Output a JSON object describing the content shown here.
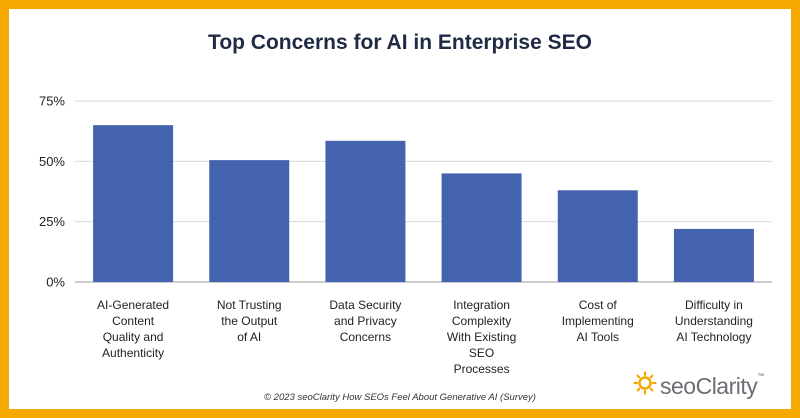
{
  "chart_data": {
    "type": "bar",
    "title": "Top Concerns for AI in Enterprise SEO",
    "categories": [
      "AI-Generated Content Quality and Authenticity",
      "Not Trusting the Output of AI",
      "Data Security and Privacy Concerns",
      "Integration Complexity With Existing SEO Processes",
      "Cost of Implementing AI Tools",
      "Difficulty in Understanding AI Technology"
    ],
    "category_lines": [
      [
        "AI-Generated",
        "Content",
        "Quality and",
        "Authenticity"
      ],
      [
        "Not Trusting",
        "the Output",
        "of AI"
      ],
      [
        "Data Security",
        "and Privacy",
        "Concerns"
      ],
      [
        "Integration",
        "Complexity",
        "With Existing",
        "SEO",
        "Processes"
      ],
      [
        "Cost of",
        "Implementing",
        "AI Tools"
      ],
      [
        "Difficulty in",
        "Understanding",
        "AI Technology"
      ]
    ],
    "values": [
      65,
      50.5,
      58.5,
      45,
      38,
      22
    ],
    "unit": "%",
    "ylim": [
      0,
      75
    ],
    "yticks": [
      "0%",
      "25%",
      "50%",
      "75%"
    ],
    "ytick_values": [
      0,
      25,
      50,
      75
    ],
    "grid": true,
    "bar_color": "#4463AE"
  },
  "footer": "© 2023 seoClarity  How SEOs Feel About Generative AI (Survey)",
  "logo": {
    "text": "seoClarity",
    "tm": "™",
    "icon": "sun-icon",
    "color": "#F5A800"
  },
  "colors": {
    "border": "#F5A800",
    "title": "#1F2A44",
    "grid": "#D9D9D9"
  }
}
